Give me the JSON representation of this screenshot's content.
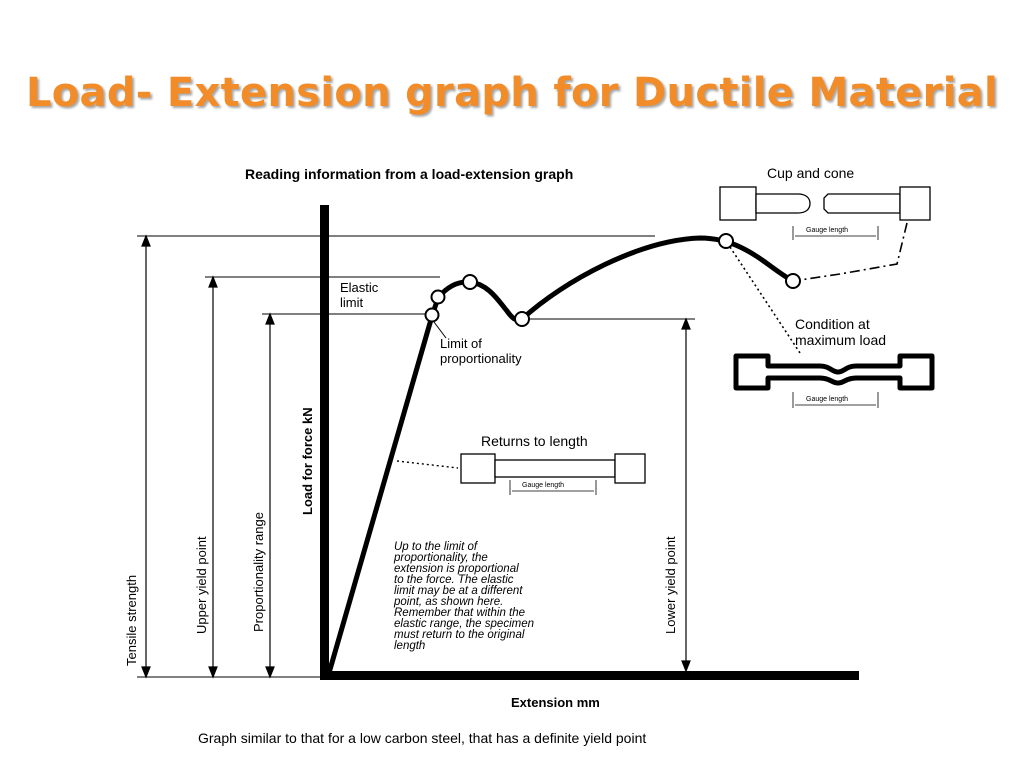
{
  "slide": {
    "title": "Load- Extension  graph for Ductile Material"
  },
  "diagram": {
    "heading": "Reading information from a load-extension graph",
    "y_axis_label": "Load for force kN",
    "x_axis_label": "Extension mm",
    "points": {
      "elastic_limit": [
        "Elastic",
        "limit"
      ],
      "limit_of_proportionality": [
        "Limit of",
        "proportionality"
      ]
    },
    "ranges": {
      "tensile_strength": "Tensile strength",
      "upper_yield_point": "Upper yield point",
      "proportionality_range": "Proportionality range",
      "lower_yield_point": "Lower yield point"
    },
    "specimens": {
      "cup_and_cone": {
        "title": "Cup and cone",
        "gauge": "Gauge length"
      },
      "max_load": {
        "title": [
          "Condition at",
          "maximum load"
        ],
        "gauge": "Gauge length"
      },
      "returns": {
        "title": "Returns to length",
        "gauge": "Gauge length"
      }
    },
    "note": [
      "Up to the limit of",
      "proportionality, the",
      "extension is proportional",
      "to the force. The elastic",
      "limit may be at a different",
      "point, as shown here.",
      "Remember that within the",
      "elastic range, the specimen",
      "must return to the original",
      "length"
    ],
    "caption": "Graph similar to that for a low carbon steel, that has a definite yield point"
  }
}
